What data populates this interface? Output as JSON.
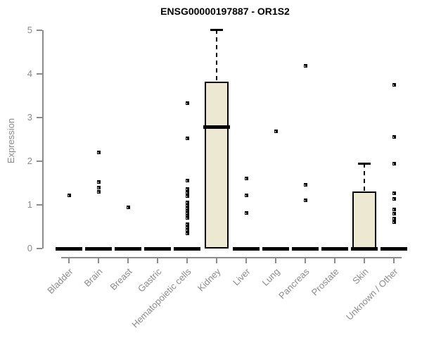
{
  "title": "ENSG00000197887 - OR1S2",
  "colors": {
    "box_fill": "#EDE8D1",
    "box_border": "#000000",
    "median": "#000000",
    "point": "#000000",
    "axis": "#8C8C8C",
    "tick_label": "#8A8A8A",
    "title": "#000000",
    "background": "#FFFFFF"
  },
  "chart_data": {
    "type": "boxplot",
    "title": "ENSG00000197887 - OR1S2",
    "xlabel": "",
    "ylabel": "Expression",
    "ylim": [
      0,
      5
    ],
    "yticks": [
      0,
      1,
      2,
      3,
      4,
      5
    ],
    "grid": false,
    "legend": false,
    "categories": [
      "Bladder",
      "Brain",
      "Breast",
      "Gastric",
      "Hematopoietic cells",
      "Kidney",
      "Liver",
      "Lung",
      "Pancreas",
      "Prostate",
      "Skin",
      "Unknown / Other"
    ],
    "boxes": [
      {
        "category": "Bladder",
        "q1": 0,
        "median": 0,
        "q3": 0,
        "whisker_low": 0,
        "whisker_high": 0,
        "points": [
          1.22
        ]
      },
      {
        "category": "Brain",
        "q1": 0,
        "median": 0,
        "q3": 0,
        "whisker_low": 0,
        "whisker_high": 0,
        "points": [
          2.2,
          1.52,
          1.4,
          1.3
        ]
      },
      {
        "category": "Breast",
        "q1": 0,
        "median": 0,
        "q3": 0,
        "whisker_low": 0,
        "whisker_high": 0,
        "points": [
          0.95
        ]
      },
      {
        "category": "Gastric",
        "q1": 0,
        "median": 0,
        "q3": 0,
        "whisker_low": 0,
        "whisker_high": 0,
        "points": []
      },
      {
        "category": "Hematopoietic cells",
        "q1": 0,
        "median": 0,
        "q3": 0,
        "whisker_low": 0,
        "whisker_high": 0,
        "points": [
          3.33,
          2.52,
          1.56,
          1.37,
          1.28,
          1.2,
          1.05,
          0.99,
          0.93,
          0.87,
          0.81,
          0.75,
          0.7,
          0.56,
          0.49,
          0.43,
          0.34
        ]
      },
      {
        "category": "Kidney",
        "q1": 0,
        "median": 2.78,
        "q3": 3.82,
        "whisker_low": 0,
        "whisker_high": 5.02,
        "points": []
      },
      {
        "category": "Liver",
        "q1": 0,
        "median": 0,
        "q3": 0,
        "whisker_low": 0,
        "whisker_high": 0,
        "points": [
          1.61,
          1.21,
          0.81
        ]
      },
      {
        "category": "Lung",
        "q1": 0,
        "median": 0,
        "q3": 0,
        "whisker_low": 0,
        "whisker_high": 0,
        "points": [
          2.69
        ]
      },
      {
        "category": "Pancreas",
        "q1": 0,
        "median": 0,
        "q3": 0,
        "whisker_low": 0,
        "whisker_high": 0,
        "points": [
          4.18,
          1.46,
          1.11
        ]
      },
      {
        "category": "Prostate",
        "q1": 0,
        "median": 0,
        "q3": 0,
        "whisker_low": 0,
        "whisker_high": 0,
        "points": []
      },
      {
        "category": "Skin",
        "q1": 0,
        "median": 0,
        "q3": 1.3,
        "whisker_low": 0,
        "whisker_high": 1.95,
        "points": []
      },
      {
        "category": "Unknown / Other",
        "q1": 0,
        "median": 0,
        "q3": 0,
        "whisker_low": 0,
        "whisker_high": 0,
        "points": [
          3.75,
          2.56,
          1.94,
          1.27,
          1.13,
          0.89,
          0.8,
          0.68,
          0.61
        ]
      }
    ]
  }
}
